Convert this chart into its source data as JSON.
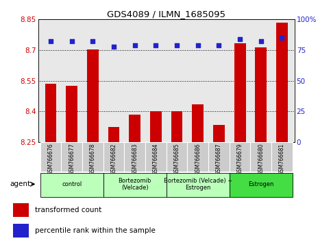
{
  "title": "GDS4089 / ILMN_1685095",
  "samples": [
    "GSM766676",
    "GSM766677",
    "GSM766678",
    "GSM766682",
    "GSM766683",
    "GSM766684",
    "GSM766685",
    "GSM766686",
    "GSM766687",
    "GSM766679",
    "GSM766680",
    "GSM766681"
  ],
  "bar_values": [
    8.535,
    8.525,
    8.705,
    8.325,
    8.385,
    8.403,
    8.402,
    8.435,
    8.335,
    8.735,
    8.715,
    8.835
  ],
  "percentile_values": [
    82,
    82,
    82,
    78,
    79,
    79,
    79,
    79,
    79,
    84,
    82,
    85
  ],
  "ymin": 8.25,
  "ymax": 8.85,
  "yticks": [
    8.25,
    8.4,
    8.55,
    8.7,
    8.85
  ],
  "ytick_labels": [
    "8.25",
    "8.4",
    "8.55",
    "8.7",
    "8.85"
  ],
  "right_yticks": [
    0,
    25,
    50,
    75,
    100
  ],
  "right_ytick_labels": [
    "0",
    "25",
    "50",
    "75",
    "100%"
  ],
  "bar_color": "#cc0000",
  "dot_color": "#2222cc",
  "group_info": [
    {
      "label": "control",
      "start": 0,
      "end": 3,
      "color": "#bbffbb"
    },
    {
      "label": "Bortezomib\n(Velcade)",
      "start": 3,
      "end": 6,
      "color": "#bbffbb"
    },
    {
      "label": "Bortezomib (Velcade) +\nEstrogen",
      "start": 6,
      "end": 9,
      "color": "#bbffbb"
    },
    {
      "label": "Estrogen",
      "start": 9,
      "end": 12,
      "color": "#44dd44"
    }
  ],
  "legend_bar_label": "transformed count",
  "legend_dot_label": "percentile rank within the sample",
  "plot_bg_color": "#e8e8e8",
  "bar_width": 0.55
}
